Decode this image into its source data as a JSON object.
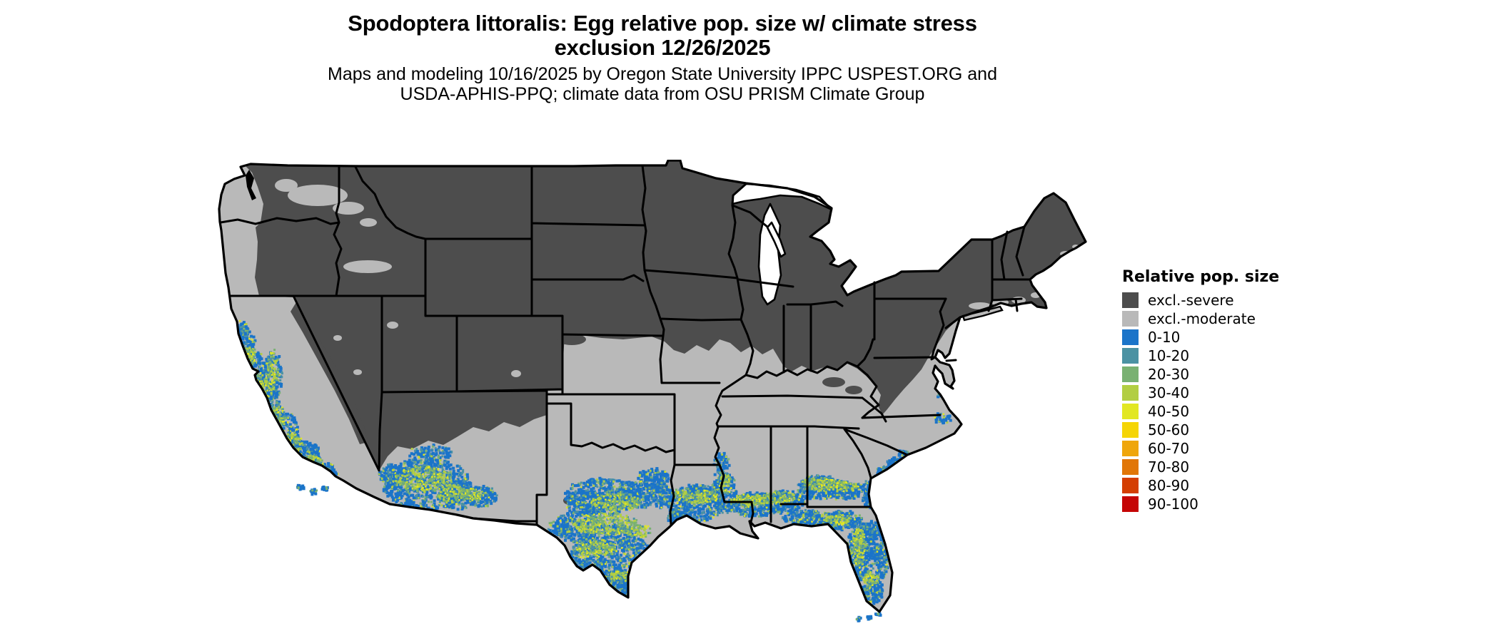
{
  "figure": {
    "title_line1": "Spodoptera littoralis: Egg relative pop. size w/ climate stress",
    "title_line2": "exclusion 12/26/2025",
    "subtitle_line1": "Maps and modeling 10/16/2025 by Oregon State University IPPC USPEST.ORG and",
    "subtitle_line2": "USDA-APHIS-PPQ; climate data from OSU PRISM Climate Group"
  },
  "legend": {
    "title": "Relative pop. size",
    "items": [
      {
        "label": "excl.-severe",
        "color": "#4D4D4D"
      },
      {
        "label": "excl.-moderate",
        "color": "#B9B9B9"
      },
      {
        "label": "0-10",
        "color": "#1B74C9"
      },
      {
        "label": "10-20",
        "color": "#4B92A3"
      },
      {
        "label": "20-30",
        "color": "#79B172"
      },
      {
        "label": "30-40",
        "color": "#B2CE43"
      },
      {
        "label": "40-50",
        "color": "#E2E722"
      },
      {
        "label": "50-60",
        "color": "#F5D506"
      },
      {
        "label": "60-70",
        "color": "#EFA60C"
      },
      {
        "label": "70-80",
        "color": "#E17607"
      },
      {
        "label": "80-90",
        "color": "#D43E02"
      },
      {
        "label": "90-100",
        "color": "#C50505"
      }
    ]
  },
  "map": {
    "region": "Contiguous United States",
    "water_color": "#FFFFFF",
    "state_border_color": "#000000"
  }
}
